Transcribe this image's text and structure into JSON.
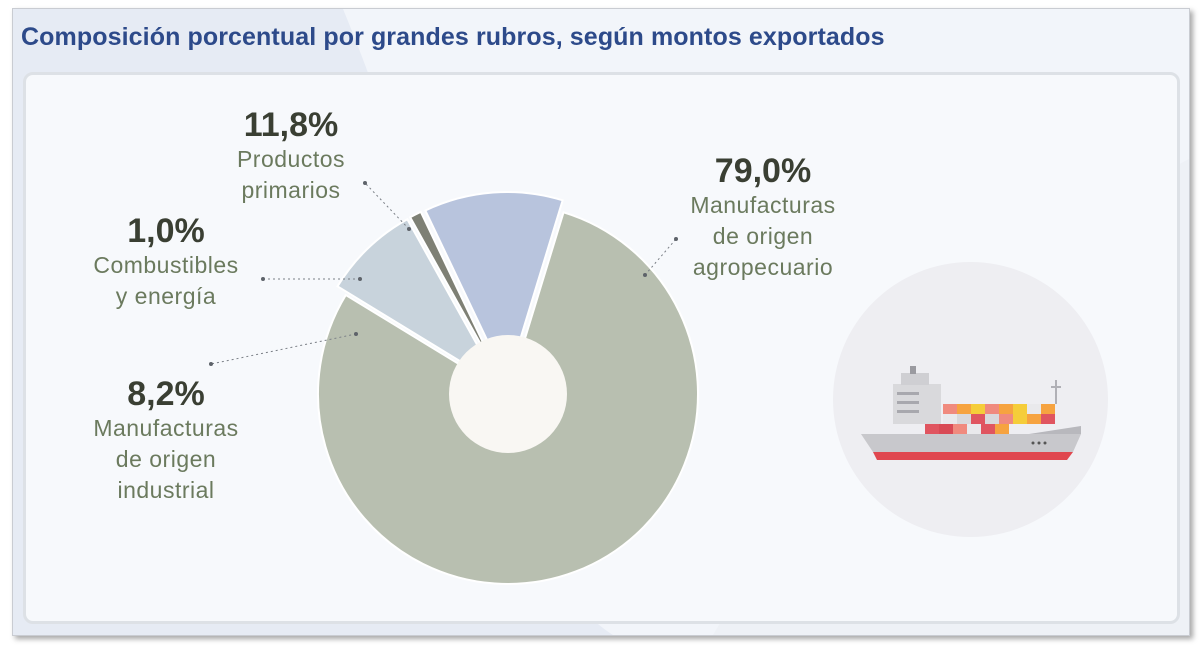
{
  "header": {
    "title": "Composición porcentual por grandes rubros, según montos exportados"
  },
  "chart_data": {
    "type": "donut",
    "title": "Composición porcentual por grandes rubros, según montos exportados",
    "unit": "%",
    "categories": [
      "Manufacturas de origen agropecuario",
      "Manufacturas de origen industrial",
      "Combustibles y energía",
      "Productos primarios"
    ],
    "values": [
      79.0,
      8.2,
      1.0,
      11.8
    ],
    "colors": [
      "#b8bfb0",
      "#c8d3dc",
      "#7e8075",
      "#b8c4dd"
    ],
    "center_color": "#f9f7f3"
  },
  "labels": {
    "moa": {
      "pct": "79,0%",
      "line1": "Manufacturas",
      "line2": "de origen",
      "line3": "agropecuario"
    },
    "pp": {
      "pct": "11,8%",
      "line1": "Productos",
      "line2": "primarios"
    },
    "ce": {
      "pct": "1,0%",
      "line1": "Combustibles",
      "line2": "y energía"
    },
    "moi": {
      "pct": "8,2%",
      "line1": "Manufacturas",
      "line2": "de origen",
      "line3": "industrial"
    }
  },
  "illustration": {
    "icon": "cargo-ship-icon"
  }
}
